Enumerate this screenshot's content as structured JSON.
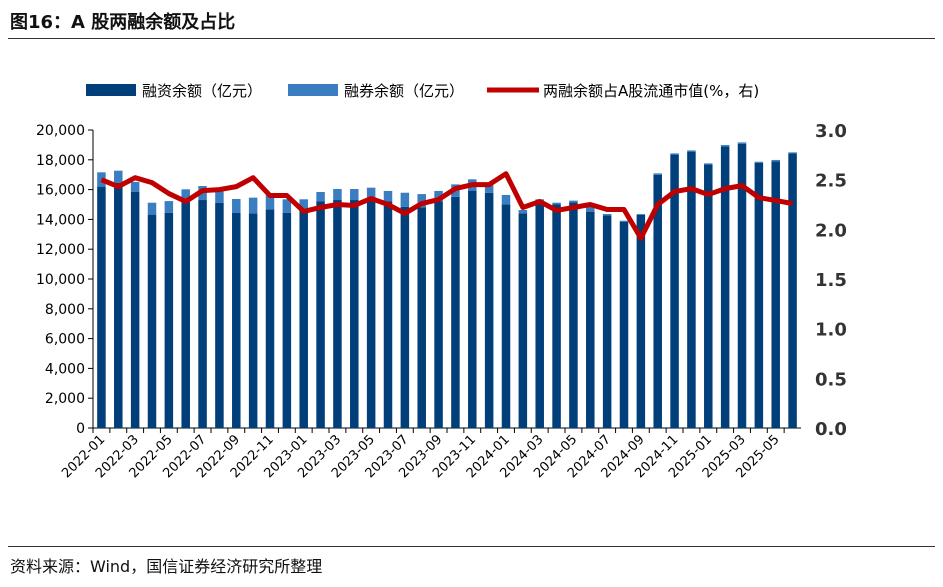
{
  "title": "图16：A 股两融余额及占比",
  "source": "资料来源：Wind，国信证券经济研究所整理",
  "colors": {
    "financing": "#003F7A",
    "securities_lending": "#3A7EC1",
    "ratio_line": "#C00000"
  },
  "chart_data": {
    "type": "bar+line",
    "legend_position": "top",
    "categories": [
      "2022-01",
      "2022-02",
      "2022-03",
      "2022-04",
      "2022-05",
      "2022-06",
      "2022-07",
      "2022-08",
      "2022-09",
      "2022-10",
      "2022-11",
      "2022-12",
      "2023-01",
      "2023-02",
      "2023-03",
      "2023-04",
      "2023-05",
      "2023-06",
      "2023-07",
      "2023-08",
      "2023-09",
      "2023-10",
      "2023-11",
      "2023-12",
      "2024-01",
      "2024-02",
      "2024-03",
      "2024-04",
      "2024-05",
      "2024-06",
      "2024-07",
      "2024-08",
      "2024-09",
      "2024-10",
      "2024-11",
      "2024-12",
      "2025-01",
      "2025-02",
      "2025-03",
      "2025-04",
      "2025-05",
      "2025-06"
    ],
    "x_tick_labels": [
      "2022-01",
      "2022-03",
      "2022-05",
      "2022-07",
      "2022-09",
      "2022-11",
      "2023-01",
      "2023-03",
      "2023-05",
      "2023-07",
      "2023-09",
      "2023-11",
      "2024-01",
      "2024-03",
      "2024-05",
      "2024-07",
      "2024-09",
      "2024-11",
      "2025-01",
      "2025-03",
      "2025-05"
    ],
    "series": [
      {
        "name": "融资余额（亿元）",
        "type": "stacked-bar",
        "axis": "left",
        "values": [
          16200,
          16450,
          15860,
          14320,
          14450,
          15300,
          15300,
          15120,
          14450,
          14410,
          14680,
          14450,
          14700,
          15200,
          15300,
          15300,
          15400,
          15200,
          14850,
          14810,
          15200,
          15520,
          15930,
          15790,
          15010,
          14410,
          15250,
          15000,
          15150,
          14520,
          14270,
          13850,
          14300,
          17000,
          18350,
          18550,
          17680,
          18900,
          19080,
          17790,
          17900,
          18420
        ]
      },
      {
        "name": "融券余额（亿元）",
        "type": "stacked-bar",
        "axis": "left",
        "values": [
          960,
          820,
          650,
          800,
          780,
          720,
          940,
          850,
          920,
          1050,
          960,
          900,
          650,
          640,
          740,
          740,
          730,
          710,
          940,
          890,
          710,
          830,
          760,
          680,
          630,
          220,
          100,
          120,
          110,
          330,
          90,
          60,
          60,
          90,
          80,
          80,
          80,
          90,
          90,
          80,
          90,
          80
        ]
      },
      {
        "name": "两融余额占A股流通市值(%，右)",
        "type": "line",
        "axis": "right",
        "values": [
          2.5,
          2.43,
          2.52,
          2.47,
          2.36,
          2.28,
          2.39,
          2.4,
          2.43,
          2.52,
          2.34,
          2.34,
          2.18,
          2.22,
          2.25,
          2.24,
          2.31,
          2.25,
          2.16,
          2.26,
          2.3,
          2.41,
          2.45,
          2.45,
          2.56,
          2.22,
          2.28,
          2.19,
          2.22,
          2.25,
          2.2,
          2.2,
          1.91,
          2.25,
          2.38,
          2.41,
          2.35,
          2.41,
          2.44,
          2.32,
          2.29,
          2.26
        ]
      }
    ],
    "left_axis": {
      "range": [
        0,
        20000
      ],
      "ticks": [
        "0",
        "2,000",
        "4,000",
        "6,000",
        "8,000",
        "10,000",
        "12,000",
        "14,000",
        "16,000",
        "18,000",
        "20,000"
      ]
    },
    "right_axis": {
      "range": [
        0,
        3.0
      ],
      "ticks": [
        "0.0",
        "0.5",
        "1.0",
        "1.5",
        "2.0",
        "2.5",
        "3.0"
      ]
    },
    "grid": false
  }
}
